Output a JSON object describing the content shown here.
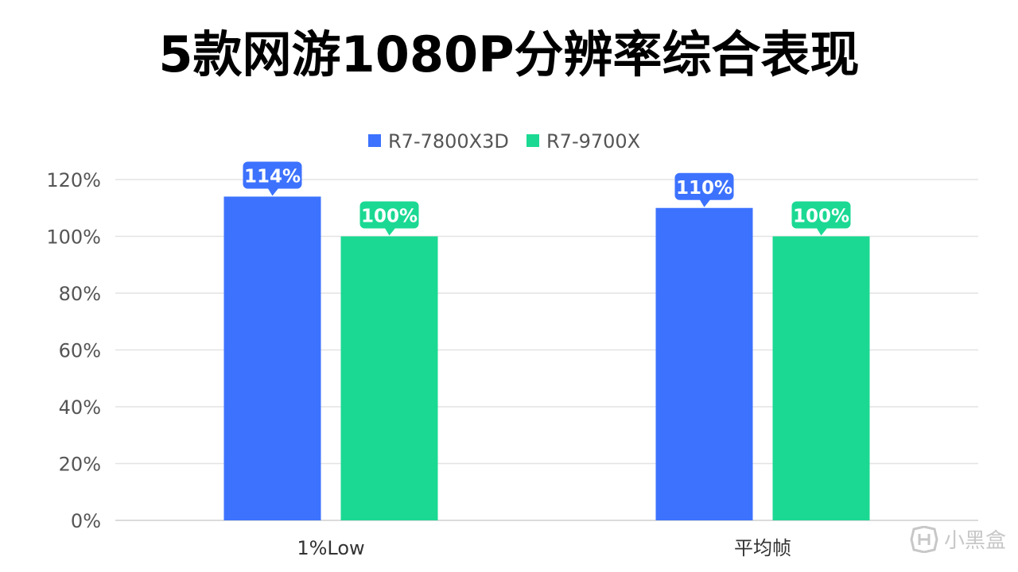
{
  "chart_data": {
    "type": "bar",
    "title": "5款网游1080P分辨率综合表现",
    "categories": [
      "1%Low",
      "平均帧"
    ],
    "series": [
      {
        "name": "R7-7800X3D",
        "color": "#3D72FF",
        "values": [
          114,
          110
        ],
        "labels": [
          "114%",
          "110%"
        ]
      },
      {
        "name": "R7-9700X",
        "color": "#1BD993",
        "values": [
          100,
          100
        ],
        "labels": [
          "100%",
          "100%"
        ]
      }
    ],
    "ylim": [
      0,
      120
    ],
    "yticks": [
      0,
      20,
      40,
      60,
      80,
      100,
      120
    ],
    "ytick_labels": [
      "0%",
      "20%",
      "40%",
      "60%",
      "80%",
      "100%",
      "120%"
    ],
    "xlabel": "",
    "ylabel": "",
    "grid": true,
    "legend_position": "top-center"
  },
  "watermark": {
    "text": "小黑盒",
    "icon": "heybox-logo-icon"
  }
}
